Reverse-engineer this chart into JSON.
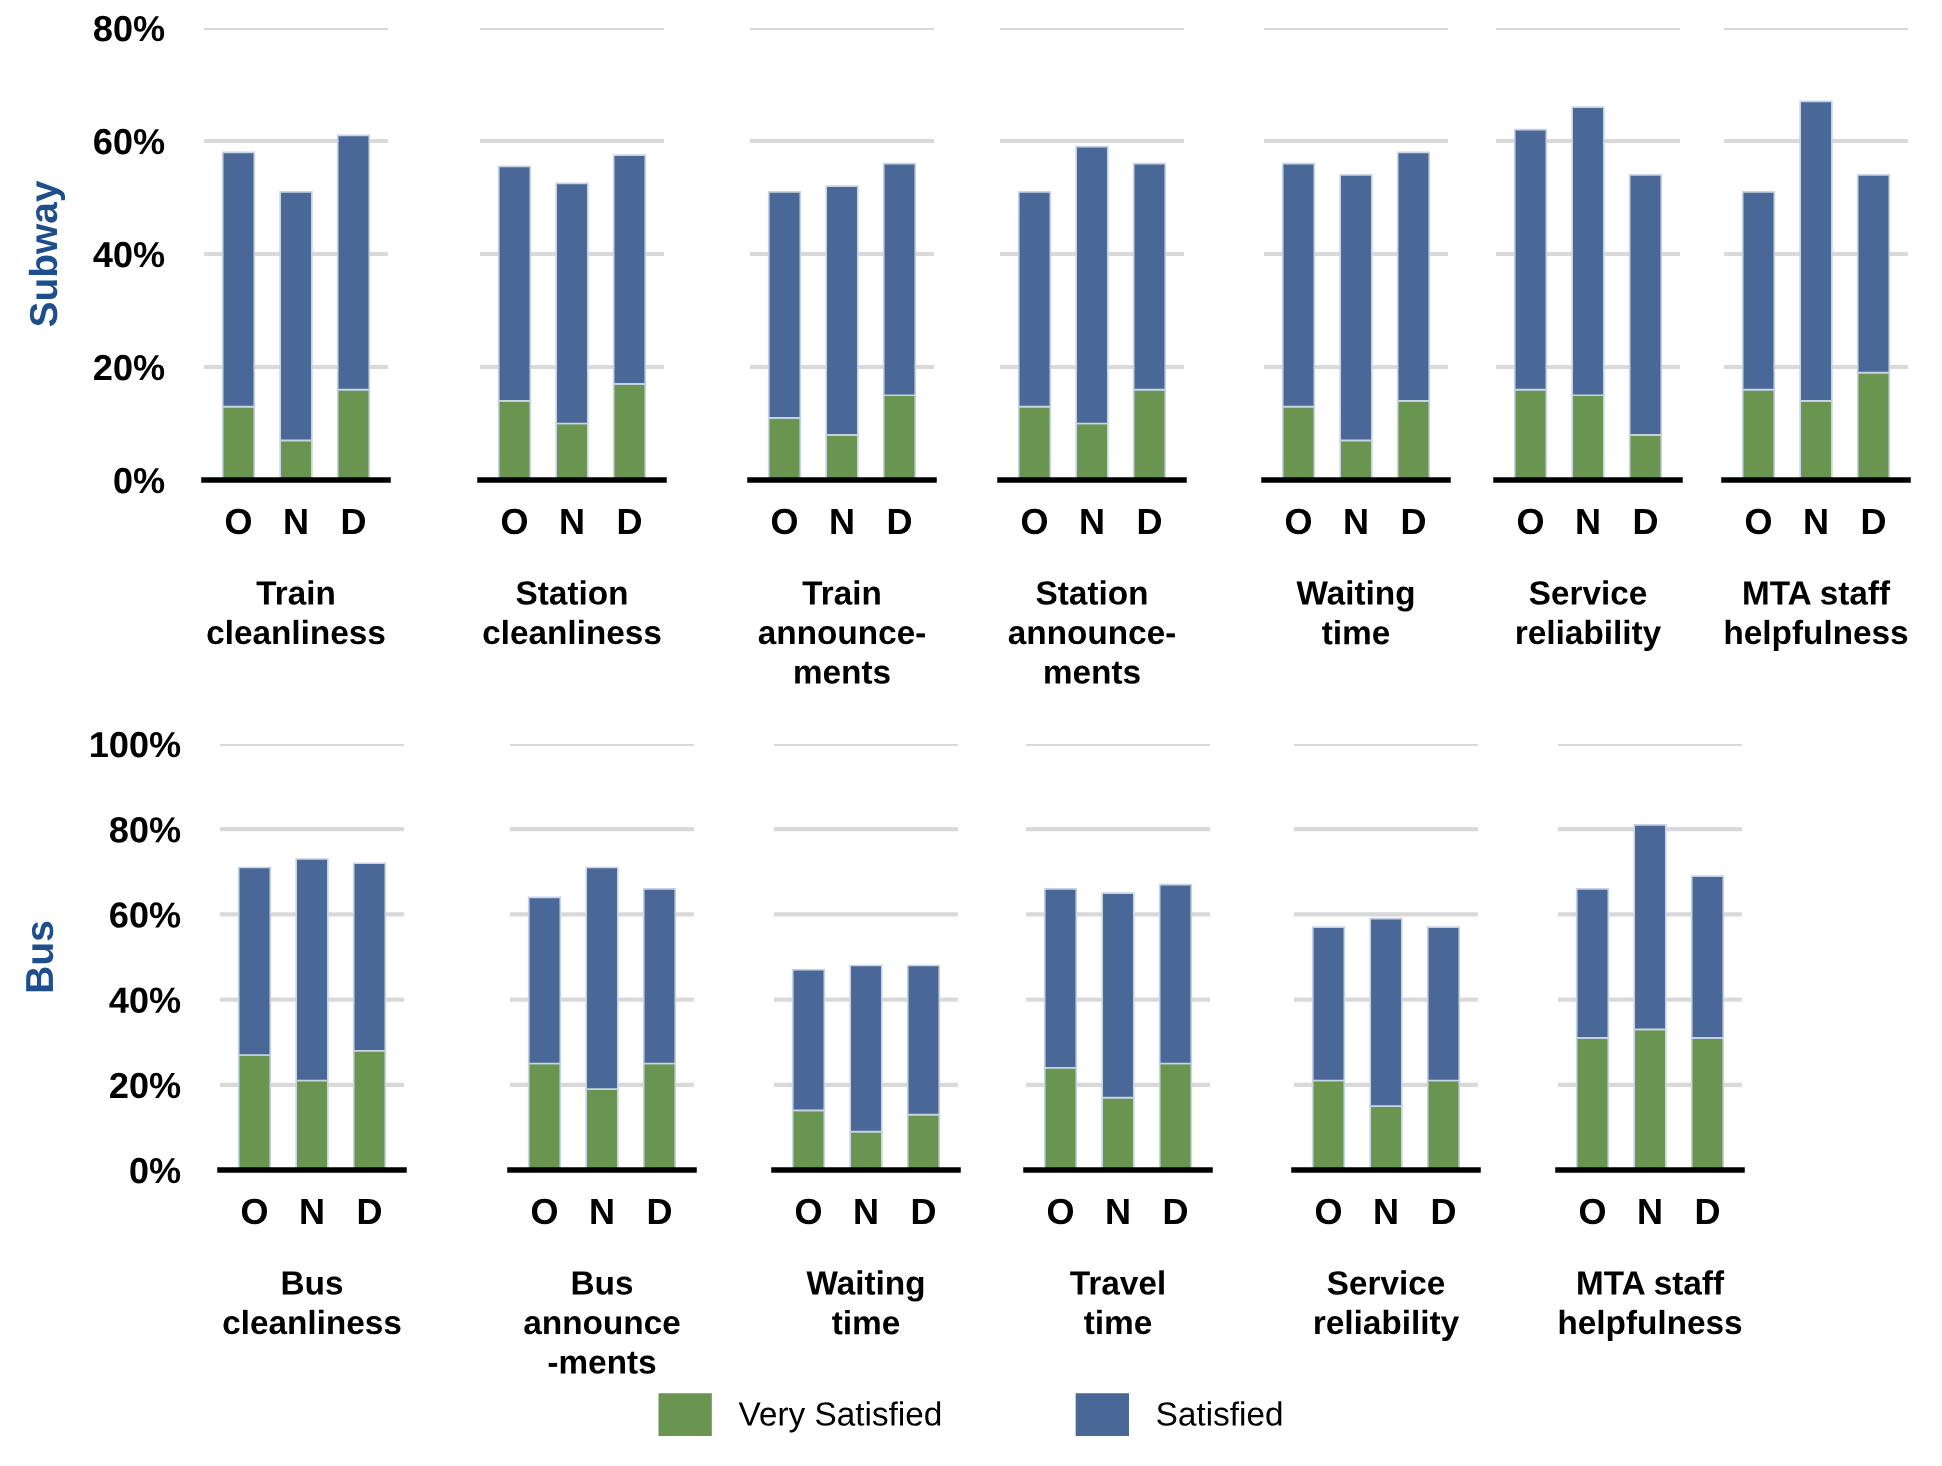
{
  "chart_data": [
    {
      "type": "bar",
      "stacked": true,
      "ylabel": "Subway",
      "xlabel": "Train\ncleanliness",
      "categories": [
        "O",
        "N",
        "D"
      ],
      "ylim": [
        0,
        80
      ],
      "yticks": [
        {
          "value": 0,
          "label": "0%"
        },
        {
          "value": 20,
          "label": "20%"
        },
        {
          "value": 40,
          "label": "40%"
        },
        {
          "value": 60,
          "label": "60%"
        },
        {
          "value": 80,
          "label": "80%"
        }
      ],
      "grid": "y",
      "series": [
        {
          "color": "#6a9550",
          "values": [
            13,
            7,
            16
          ]
        },
        {
          "color": "#4a6897",
          "values": [
            45,
            44,
            45
          ]
        }
      ]
    },
    {
      "type": "bar",
      "stacked": true,
      "xlabel": "Station\ncleanliness",
      "categories": [
        "O",
        "N",
        "D"
      ],
      "ylim": [
        0,
        80
      ],
      "yticks": [
        {
          "value": 0,
          "label": null
        },
        {
          "value": 20,
          "label": null
        },
        {
          "value": 40,
          "label": null
        },
        {
          "value": 60,
          "label": null
        },
        {
          "value": 80,
          "label": null
        }
      ],
      "grid": "y",
      "tick_labels": "x",
      "series": [
        {
          "color": "#6a9550",
          "values": [
            14,
            10,
            17
          ]
        },
        {
          "color": "#4a6897",
          "values": [
            41.5,
            42.5,
            40.5
          ]
        }
      ]
    },
    {
      "type": "bar",
      "stacked": true,
      "xlabel": "Train\nannounce-\nments",
      "categories": [
        "O",
        "N",
        "D"
      ],
      "ylim": [
        0,
        80
      ],
      "yticks": [
        {
          "value": 0,
          "label": null
        },
        {
          "value": 20,
          "label": null
        },
        {
          "value": 40,
          "label": null
        },
        {
          "value": 60,
          "label": null
        },
        {
          "value": 80,
          "label": null
        }
      ],
      "grid": "y",
      "tick_labels": "x",
      "series": [
        {
          "color": "#6a9550",
          "values": [
            11,
            8,
            15
          ]
        },
        {
          "color": "#4a6897",
          "values": [
            40,
            44,
            41
          ]
        }
      ]
    },
    {
      "type": "bar",
      "stacked": true,
      "xlabel": "Station\nannounce-\nments",
      "categories": [
        "O",
        "N",
        "D"
      ],
      "ylim": [
        0,
        80
      ],
      "yticks": [
        {
          "value": 0,
          "label": null
        },
        {
          "value": 20,
          "label": null
        },
        {
          "value": 40,
          "label": null
        },
        {
          "value": 60,
          "label": null
        },
        {
          "value": 80,
          "label": null
        }
      ],
      "grid": "y",
      "tick_labels": "x",
      "series": [
        {
          "color": "#6a9550",
          "values": [
            13,
            10,
            16
          ]
        },
        {
          "color": "#4a6897",
          "values": [
            38,
            49,
            40
          ]
        }
      ]
    },
    {
      "type": "bar",
      "stacked": true,
      "xlabel": "Waiting\ntime",
      "categories": [
        "O",
        "N",
        "D"
      ],
      "ylim": [
        0,
        80
      ],
      "yticks": [
        {
          "value": 0,
          "label": null
        },
        {
          "value": 20,
          "label": null
        },
        {
          "value": 40,
          "label": null
        },
        {
          "value": 60,
          "label": null
        },
        {
          "value": 80,
          "label": null
        }
      ],
      "grid": "y",
      "tick_labels": "x",
      "series": [
        {
          "color": "#6a9550",
          "values": [
            13,
            7,
            14
          ]
        },
        {
          "color": "#4a6897",
          "values": [
            43,
            47,
            44
          ]
        }
      ]
    },
    {
      "type": "bar",
      "stacked": true,
      "xlabel": "Service\nreliability",
      "categories": [
        "O",
        "N",
        "D"
      ],
      "ylim": [
        0,
        80
      ],
      "yticks": [
        {
          "value": 0,
          "label": null
        },
        {
          "value": 20,
          "label": null
        },
        {
          "value": 40,
          "label": null
        },
        {
          "value": 60,
          "label": null
        },
        {
          "value": 80,
          "label": null
        }
      ],
      "grid": "y",
      "tick_labels": "x",
      "series": [
        {
          "color": "#6a9550",
          "values": [
            16,
            15,
            8
          ]
        },
        {
          "color": "#4a6897",
          "values": [
            46,
            51,
            46
          ]
        }
      ]
    },
    {
      "type": "bar",
      "stacked": true,
      "xlabel": "MTA staff\nhelpfulness",
      "categories": [
        "O",
        "N",
        "D"
      ],
      "ylim": [
        0,
        80
      ],
      "yticks": [
        {
          "value": 0,
          "label": null
        },
        {
          "value": 20,
          "label": null
        },
        {
          "value": 40,
          "label": null
        },
        {
          "value": 60,
          "label": null
        },
        {
          "value": 80,
          "label": null
        }
      ],
      "grid": "y",
      "tick_labels": "x",
      "series": [
        {
          "color": "#6a9550",
          "values": [
            16,
            14,
            19
          ]
        },
        {
          "color": "#4a6897",
          "values": [
            35,
            53,
            35
          ]
        }
      ]
    },
    {
      "type": "bar",
      "stacked": true,
      "ylabel": "Bus",
      "xlabel": "Bus\ncleanliness",
      "categories": [
        "O",
        "N",
        "D"
      ],
      "ylim": [
        0,
        100
      ],
      "yticks": [
        {
          "value": 0,
          "label": "0%"
        },
        {
          "value": 20,
          "label": "20%"
        },
        {
          "value": 40,
          "label": "40%"
        },
        {
          "value": 60,
          "label": "60%"
        },
        {
          "value": 80,
          "label": "80%"
        },
        {
          "value": 100,
          "label": "100%"
        }
      ],
      "grid": "y",
      "series": [
        {
          "color": "#6a9550",
          "values": [
            27,
            21,
            28
          ]
        },
        {
          "color": "#4a6897",
          "values": [
            44,
            52,
            44
          ]
        }
      ]
    },
    {
      "type": "bar",
      "stacked": true,
      "xlabel": "Bus\nannounce\n-ments",
      "categories": [
        "O",
        "N",
        "D"
      ],
      "ylim": [
        0,
        100
      ],
      "yticks": [
        {
          "value": 0,
          "label": null
        },
        {
          "value": 20,
          "label": null
        },
        {
          "value": 40,
          "label": null
        },
        {
          "value": 60,
          "label": null
        },
        {
          "value": 80,
          "label": null
        },
        {
          "value": 100,
          "label": null
        }
      ],
      "grid": "y",
      "tick_labels": "x",
      "series": [
        {
          "color": "#6a9550",
          "values": [
            25,
            19,
            25
          ]
        },
        {
          "color": "#4a6897",
          "values": [
            39,
            52,
            41
          ]
        }
      ]
    },
    {
      "type": "bar",
      "stacked": true,
      "xlabel": "Waiting\ntime",
      "categories": [
        "O",
        "N",
        "D"
      ],
      "ylim": [
        0,
        100
      ],
      "yticks": [
        {
          "value": 0,
          "label": null
        },
        {
          "value": 20,
          "label": null
        },
        {
          "value": 40,
          "label": null
        },
        {
          "value": 60,
          "label": null
        },
        {
          "value": 80,
          "label": null
        },
        {
          "value": 100,
          "label": null
        }
      ],
      "grid": "y",
      "tick_labels": "x",
      "series": [
        {
          "color": "#6a9550",
          "values": [
            14,
            9,
            13
          ]
        },
        {
          "color": "#4a6897",
          "values": [
            33,
            39,
            35
          ]
        }
      ]
    },
    {
      "type": "bar",
      "stacked": true,
      "xlabel": "Travel\ntime",
      "categories": [
        "O",
        "N",
        "D"
      ],
      "ylim": [
        0,
        100
      ],
      "yticks": [
        {
          "value": 0,
          "label": null
        },
        {
          "value": 20,
          "label": null
        },
        {
          "value": 40,
          "label": null
        },
        {
          "value": 60,
          "label": null
        },
        {
          "value": 80,
          "label": null
        },
        {
          "value": 100,
          "label": null
        }
      ],
      "grid": "y",
      "tick_labels": "x",
      "series": [
        {
          "color": "#6a9550",
          "values": [
            24,
            17,
            25
          ]
        },
        {
          "color": "#4a6897",
          "values": [
            42,
            48,
            42
          ]
        }
      ]
    },
    {
      "type": "bar",
      "stacked": true,
      "xlabel": "Service\nreliability",
      "categories": [
        "O",
        "N",
        "D"
      ],
      "ylim": [
        0,
        100
      ],
      "yticks": [
        {
          "value": 0,
          "label": null
        },
        {
          "value": 20,
          "label": null
        },
        {
          "value": 40,
          "label": null
        },
        {
          "value": 60,
          "label": null
        },
        {
          "value": 80,
          "label": null
        },
        {
          "value": 100,
          "label": null
        }
      ],
      "grid": "y",
      "tick_labels": "x",
      "series": [
        {
          "color": "#6a9550",
          "values": [
            21,
            15,
            21
          ]
        },
        {
          "color": "#4a6897",
          "values": [
            36,
            44,
            36
          ]
        }
      ]
    },
    {
      "type": "bar",
      "stacked": true,
      "xlabel": "MTA staff\nhelpfulness",
      "categories": [
        "O",
        "N",
        "D"
      ],
      "ylim": [
        0,
        100
      ],
      "yticks": [
        {
          "value": 0,
          "label": null
        },
        {
          "value": 20,
          "label": null
        },
        {
          "value": 40,
          "label": null
        },
        {
          "value": 60,
          "label": null
        },
        {
          "value": 80,
          "label": null
        },
        {
          "value": 100,
          "label": null
        }
      ],
      "grid": "y",
      "tick_labels": "x",
      "legend": "bottom",
      "series": [
        {
          "name": "Very Satisfied",
          "color": "#6a9550",
          "values": [
            31,
            33,
            31
          ]
        },
        {
          "name": "Satisfied",
          "color": "#4a6897",
          "values": [
            35,
            48,
            38
          ]
        }
      ]
    }
  ]
}
